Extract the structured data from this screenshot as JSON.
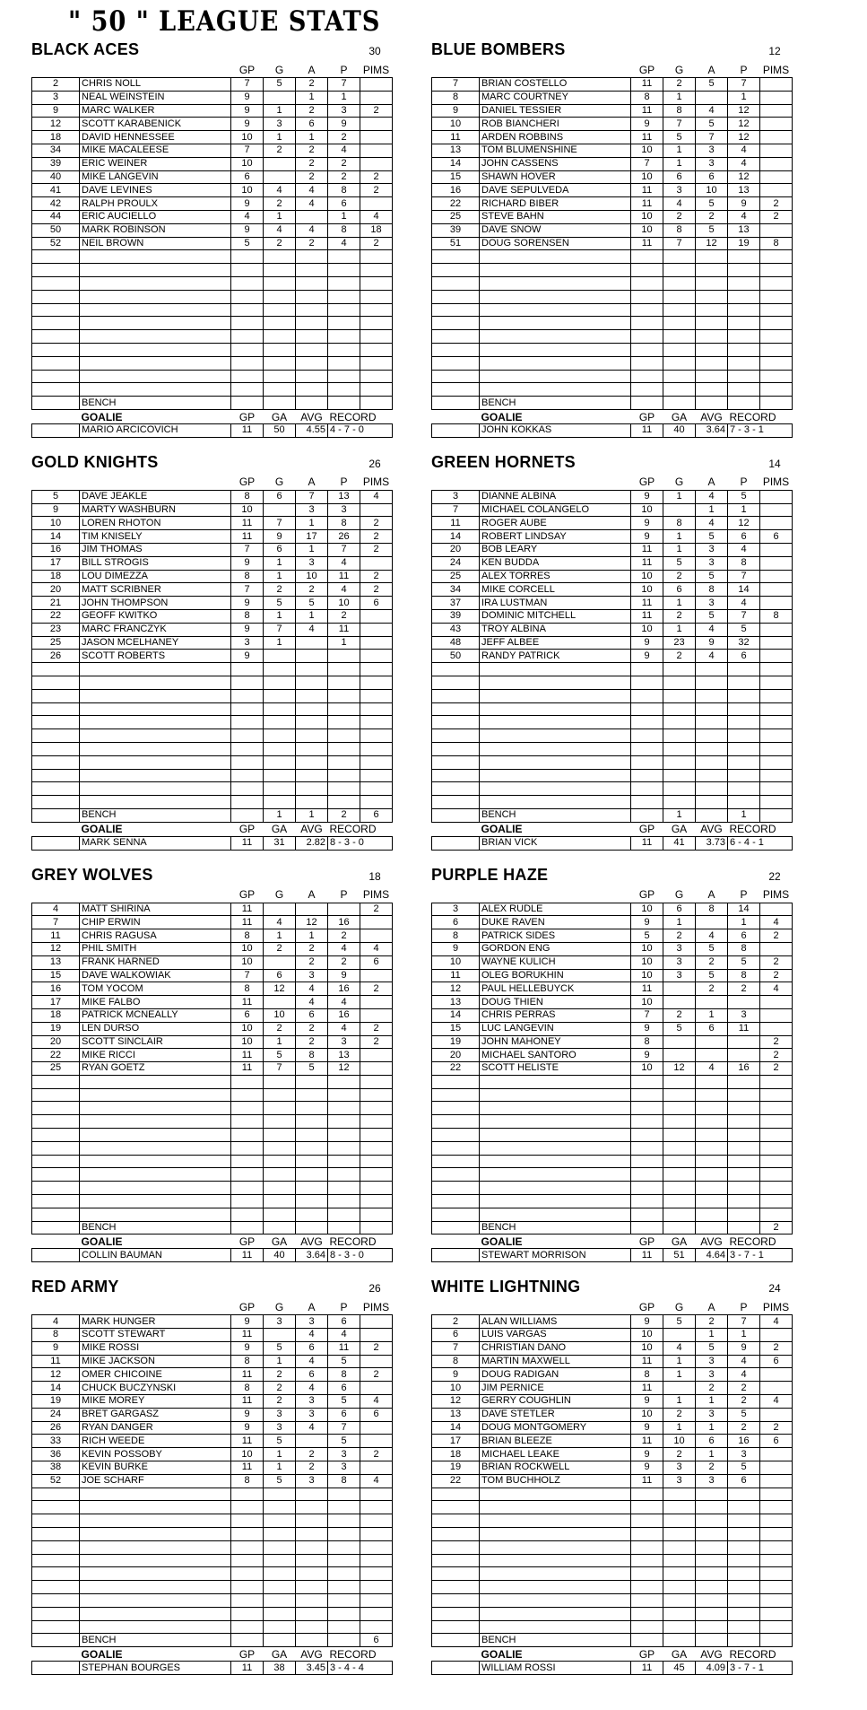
{
  "page_title": "\" 50 \" LEAGUE STATS",
  "columns": {
    "gp": "GP",
    "g": "G",
    "a": "A",
    "p": "P",
    "pims": "PIMS"
  },
  "goalie_columns": {
    "gp": "GP",
    "ga": "GA",
    "avg": "AVG",
    "record": "RECORD"
  },
  "labels": {
    "bench": "BENCH",
    "goalie": "GOALIE"
  },
  "teams": [
    {
      "name": "BLACK ACES",
      "total": "30",
      "players": [
        [
          "2",
          "CHRIS NOLL",
          "7",
          "5",
          "2",
          "7",
          ""
        ],
        [
          "3",
          "NEAL WEINSTEIN",
          "9",
          "",
          "1",
          "1",
          ""
        ],
        [
          "9",
          "MARC WALKER",
          "9",
          "1",
          "2",
          "3",
          "2"
        ],
        [
          "12",
          "SCOTT KARABENICK",
          "9",
          "3",
          "6",
          "9",
          ""
        ],
        [
          "18",
          "DAVID HENNESSEE",
          "10",
          "1",
          "1",
          "2",
          ""
        ],
        [
          "34",
          "MIKE MACALEESE",
          "7",
          "2",
          "2",
          "4",
          ""
        ],
        [
          "39",
          "ERIC WEINER",
          "10",
          "",
          "2",
          "2",
          ""
        ],
        [
          "40",
          "MIKE LANGEVIN",
          "6",
          "",
          "2",
          "2",
          "2"
        ],
        [
          "41",
          "DAVE LEVINES",
          "10",
          "4",
          "4",
          "8",
          "2"
        ],
        [
          "42",
          "RALPH PROULX",
          "9",
          "2",
          "4",
          "6",
          ""
        ],
        [
          "44",
          "ERIC AUCIELLO",
          "4",
          "1",
          "",
          "1",
          "4"
        ],
        [
          "50",
          "MARK ROBINSON",
          "9",
          "4",
          "4",
          "8",
          "18"
        ],
        [
          "52",
          "NEIL BROWN",
          "5",
          "2",
          "2",
          "4",
          "2"
        ]
      ],
      "bench": [
        "",
        "",
        "",
        "",
        ""
      ],
      "goalie": {
        "name": "MARIO ARCICOVICH",
        "gp": "11",
        "ga": "50",
        "avg": "4.55",
        "record": "4 - 7 - 0"
      }
    },
    {
      "name": "BLUE BOMBERS",
      "total": "12",
      "players": [
        [
          "7",
          "BRIAN COSTELLO",
          "11",
          "2",
          "5",
          "7",
          ""
        ],
        [
          "8",
          "MARC COURTNEY",
          "8",
          "1",
          "",
          "1",
          ""
        ],
        [
          "9",
          "DANIEL TESSIER",
          "11",
          "8",
          "4",
          "12",
          ""
        ],
        [
          "10",
          "ROB BIANCHERI",
          "9",
          "7",
          "5",
          "12",
          ""
        ],
        [
          "11",
          "ARDEN ROBBINS",
          "11",
          "5",
          "7",
          "12",
          ""
        ],
        [
          "13",
          "TOM BLUMENSHINE",
          "10",
          "1",
          "3",
          "4",
          ""
        ],
        [
          "14",
          "JOHN CASSENS",
          "7",
          "1",
          "3",
          "4",
          ""
        ],
        [
          "15",
          "SHAWN HOVER",
          "10",
          "6",
          "6",
          "12",
          ""
        ],
        [
          "16",
          "DAVE SEPULVEDA",
          "11",
          "3",
          "10",
          "13",
          ""
        ],
        [
          "22",
          "RICHARD BIBER",
          "11",
          "4",
          "5",
          "9",
          "2"
        ],
        [
          "25",
          "STEVE BAHN",
          "10",
          "2",
          "2",
          "4",
          "2"
        ],
        [
          "39",
          "DAVE SNOW",
          "10",
          "8",
          "5",
          "13",
          ""
        ],
        [
          "51",
          "DOUG SORENSEN",
          "11",
          "7",
          "12",
          "19",
          "8"
        ]
      ],
      "bench": [
        "",
        "",
        "",
        "",
        ""
      ],
      "goalie": {
        "name": "JOHN KOKKAS",
        "gp": "11",
        "ga": "40",
        "avg": "3.64",
        "record": "7 - 3 - 1"
      }
    },
    {
      "name": "GOLD KNIGHTS",
      "total": "26",
      "players": [
        [
          "5",
          "DAVE JEAKLE",
          "8",
          "6",
          "7",
          "13",
          "4"
        ],
        [
          "9",
          "MARTY WASHBURN",
          "10",
          "",
          "3",
          "3",
          ""
        ],
        [
          "10",
          "LOREN RHOTON",
          "11",
          "7",
          "1",
          "8",
          "2"
        ],
        [
          "14",
          "TIM KNISELY",
          "11",
          "9",
          "17",
          "26",
          "2"
        ],
        [
          "16",
          "JIM THOMAS",
          "7",
          "6",
          "1",
          "7",
          "2"
        ],
        [
          "17",
          "BILL STROGIS",
          "9",
          "1",
          "3",
          "4",
          ""
        ],
        [
          "18",
          "LOU DIMEZZA",
          "8",
          "1",
          "10",
          "11",
          "2"
        ],
        [
          "20",
          "MATT SCRIBNER",
          "7",
          "2",
          "2",
          "4",
          "2"
        ],
        [
          "21",
          "JOHN THOMPSON",
          "9",
          "5",
          "5",
          "10",
          "6"
        ],
        [
          "22",
          "GEOFF KWITKO",
          "8",
          "1",
          "1",
          "2",
          ""
        ],
        [
          "23",
          "MARC FRANCZYK",
          "9",
          "7",
          "4",
          "11",
          ""
        ],
        [
          "25",
          "JASON MCELHANEY",
          "3",
          "1",
          "",
          "1",
          ""
        ],
        [
          "26",
          "SCOTT ROBERTS",
          "9",
          "",
          "",
          "",
          ""
        ]
      ],
      "bench": [
        "",
        "1",
        "1",
        "2",
        "6"
      ],
      "goalie": {
        "name": "MARK SENNA",
        "gp": "11",
        "ga": "31",
        "avg": "2.82",
        "record": "8 - 3 - 0"
      }
    },
    {
      "name": "GREEN HORNETS",
      "total": "14",
      "players": [
        [
          "3",
          "DIANNE ALBINA",
          "9",
          "1",
          "4",
          "5",
          ""
        ],
        [
          "7",
          "MICHAEL COLANGELO",
          "10",
          "",
          "1",
          "1",
          ""
        ],
        [
          "11",
          "ROGER AUBE",
          "9",
          "8",
          "4",
          "12",
          ""
        ],
        [
          "14",
          "ROBERT LINDSAY",
          "9",
          "1",
          "5",
          "6",
          "6"
        ],
        [
          "20",
          "BOB LEARY",
          "11",
          "1",
          "3",
          "4",
          ""
        ],
        [
          "24",
          "KEN BUDDA",
          "11",
          "5",
          "3",
          "8",
          ""
        ],
        [
          "25",
          "ALEX TORRES",
          "10",
          "2",
          "5",
          "7",
          ""
        ],
        [
          "34",
          "MIKE CORCELL",
          "10",
          "6",
          "8",
          "14",
          ""
        ],
        [
          "37",
          "IRA LUSTMAN",
          "11",
          "1",
          "3",
          "4",
          ""
        ],
        [
          "39",
          "DOMINIC MITCHELL",
          "11",
          "2",
          "5",
          "7",
          "8"
        ],
        [
          "43",
          "TROY ALBINA",
          "10",
          "1",
          "4",
          "5",
          ""
        ],
        [
          "48",
          "JEFF ALBEE",
          "9",
          "23",
          "9",
          "32",
          ""
        ],
        [
          "50",
          "RANDY PATRICK",
          "9",
          "2",
          "4",
          "6",
          ""
        ]
      ],
      "bench": [
        "",
        "1",
        "",
        "1",
        ""
      ],
      "goalie": {
        "name": "BRIAN VICK",
        "gp": "11",
        "ga": "41",
        "avg": "3.73",
        "record": "6 - 4 - 1"
      }
    },
    {
      "name": "GREY WOLVES",
      "total": "18",
      "players": [
        [
          "4",
          "MATT SHIRINA",
          "11",
          "",
          "",
          "",
          "2"
        ],
        [
          "7",
          "CHIP ERWIN",
          "11",
          "4",
          "12",
          "16",
          ""
        ],
        [
          "11",
          "CHRIS RAGUSA",
          "8",
          "1",
          "1",
          "2",
          ""
        ],
        [
          "12",
          "PHIL SMITH",
          "10",
          "2",
          "2",
          "4",
          "4"
        ],
        [
          "13",
          "FRANK HARNED",
          "10",
          "",
          "2",
          "2",
          "6"
        ],
        [
          "15",
          "DAVE WALKOWIAK",
          "7",
          "6",
          "3",
          "9",
          ""
        ],
        [
          "16",
          "TOM YOCOM",
          "8",
          "12",
          "4",
          "16",
          "2"
        ],
        [
          "17",
          "MIKE FALBO",
          "11",
          "",
          "4",
          "4",
          ""
        ],
        [
          "18",
          "PATRICK MCNEALLY",
          "6",
          "10",
          "6",
          "16",
          ""
        ],
        [
          "19",
          "LEN DURSO",
          "10",
          "2",
          "2",
          "4",
          "2"
        ],
        [
          "20",
          "SCOTT SINCLAIR",
          "10",
          "1",
          "2",
          "3",
          "2"
        ],
        [
          "22",
          "MIKE RICCI",
          "11",
          "5",
          "8",
          "13",
          ""
        ],
        [
          "25",
          "RYAN GOETZ",
          "11",
          "7",
          "5",
          "12",
          ""
        ]
      ],
      "bench": [
        "",
        "",
        "",
        "",
        ""
      ],
      "goalie": {
        "name": "COLLIN BAUMAN",
        "gp": "11",
        "ga": "40",
        "avg": "3.64",
        "record": "8 - 3 - 0"
      }
    },
    {
      "name": "PURPLE HAZE",
      "total": "22",
      "players": [
        [
          "3",
          "ALEX RUDLE",
          "10",
          "6",
          "8",
          "14",
          ""
        ],
        [
          "6",
          "DUKE RAVEN",
          "9",
          "1",
          "",
          "1",
          "4"
        ],
        [
          "8",
          "PATRICK SIDES",
          "5",
          "2",
          "4",
          "6",
          "2"
        ],
        [
          "9",
          "GORDON ENG",
          "10",
          "3",
          "5",
          "8",
          ""
        ],
        [
          "10",
          "WAYNE KULICH",
          "10",
          "3",
          "2",
          "5",
          "2"
        ],
        [
          "11",
          "OLEG BORUKHIN",
          "10",
          "3",
          "5",
          "8",
          "2"
        ],
        [
          "12",
          "PAUL HELLEBUYCK",
          "11",
          "",
          "2",
          "2",
          "4"
        ],
        [
          "13",
          "DOUG THIEN",
          "10",
          "",
          "",
          "",
          ""
        ],
        [
          "14",
          "CHRIS PERRAS",
          "7",
          "2",
          "1",
          "3",
          ""
        ],
        [
          "15",
          "LUC LANGEVIN",
          "9",
          "5",
          "6",
          "11",
          ""
        ],
        [
          "19",
          "JOHN MAHONEY",
          "8",
          "",
          "",
          "",
          "2"
        ],
        [
          "20",
          "MICHAEL SANTORO",
          "9",
          "",
          "",
          "",
          "2"
        ],
        [
          "22",
          "SCOTT HELISTE",
          "10",
          "12",
          "4",
          "16",
          "2"
        ]
      ],
      "bench": [
        "",
        "",
        "",
        "",
        "2"
      ],
      "goalie": {
        "name": "STEWART MORRISON",
        "gp": "11",
        "ga": "51",
        "avg": "4.64",
        "record": "3 - 7 - 1"
      }
    },
    {
      "name": "RED ARMY",
      "total": "26",
      "players": [
        [
          "4",
          "MARK HUNGER",
          "9",
          "3",
          "3",
          "6",
          ""
        ],
        [
          "8",
          "SCOTT STEWART",
          "11",
          "",
          "4",
          "4",
          ""
        ],
        [
          "9",
          "MIKE ROSSI",
          "9",
          "5",
          "6",
          "11",
          "2"
        ],
        [
          "11",
          "MIKE JACKSON",
          "8",
          "1",
          "4",
          "5",
          ""
        ],
        [
          "12",
          "OMER CHICOINE",
          "11",
          "2",
          "6",
          "8",
          "2"
        ],
        [
          "14",
          "CHUCK BUCZYNSKI",
          "8",
          "2",
          "4",
          "6",
          ""
        ],
        [
          "19",
          "MIKE MOREY",
          "11",
          "2",
          "3",
          "5",
          "4"
        ],
        [
          "24",
          "BRET GARGASZ",
          "9",
          "3",
          "3",
          "6",
          "6"
        ],
        [
          "26",
          "RYAN DANGER",
          "9",
          "3",
          "4",
          "7",
          ""
        ],
        [
          "33",
          "RICH WEEDE",
          "11",
          "5",
          "",
          "5",
          ""
        ],
        [
          "36",
          "KEVIN POSSOBY",
          "10",
          "1",
          "2",
          "3",
          "2"
        ],
        [
          "38",
          "KEVIN BURKE",
          "11",
          "1",
          "2",
          "3",
          ""
        ],
        [
          "52",
          "JOE SCHARF",
          "8",
          "5",
          "3",
          "8",
          "4"
        ]
      ],
      "bench": [
        "",
        "",
        "",
        "",
        "6"
      ],
      "goalie": {
        "name": "STEPHAN BOURGES",
        "gp": "11",
        "ga": "38",
        "avg": "3.45",
        "record": "3 - 4 - 4"
      }
    },
    {
      "name": "WHITE LIGHTNING",
      "total": "24",
      "players": [
        [
          "2",
          "ALAN WILLIAMS",
          "9",
          "5",
          "2",
          "7",
          "4"
        ],
        [
          "6",
          "LUIS VARGAS",
          "10",
          "",
          "1",
          "1",
          ""
        ],
        [
          "7",
          "CHRISTIAN DANO",
          "10",
          "4",
          "5",
          "9",
          "2"
        ],
        [
          "8",
          "MARTIN MAXWELL",
          "11",
          "1",
          "3",
          "4",
          "6"
        ],
        [
          "9",
          "DOUG RADIGAN",
          "8",
          "1",
          "3",
          "4",
          ""
        ],
        [
          "10",
          "JIM PERNICE",
          "11",
          "",
          "2",
          "2",
          ""
        ],
        [
          "12",
          "GERRY COUGHLIN",
          "9",
          "1",
          "1",
          "2",
          "4"
        ],
        [
          "13",
          "DAVE STETLER",
          "10",
          "2",
          "3",
          "5",
          ""
        ],
        [
          "14",
          "DOUG MONTGOMERY",
          "9",
          "1",
          "1",
          "2",
          "2"
        ],
        [
          "17",
          "BRIAN BLEEZE",
          "11",
          "10",
          "6",
          "16",
          "6"
        ],
        [
          "18",
          "MICHAEL LEAKE",
          "9",
          "2",
          "1",
          "3",
          ""
        ],
        [
          "19",
          "BRIAN ROCKWELL",
          "9",
          "3",
          "2",
          "5",
          ""
        ],
        [
          "22",
          "TOM BUCHHOLZ",
          "11",
          "3",
          "3",
          "6",
          ""
        ]
      ],
      "bench": [
        "",
        "",
        "",
        "",
        ""
      ],
      "goalie": {
        "name": "WILLIAM ROSSI",
        "gp": "11",
        "ga": "45",
        "avg": "4.09",
        "record": "3 - 7 - 1"
      }
    }
  ]
}
